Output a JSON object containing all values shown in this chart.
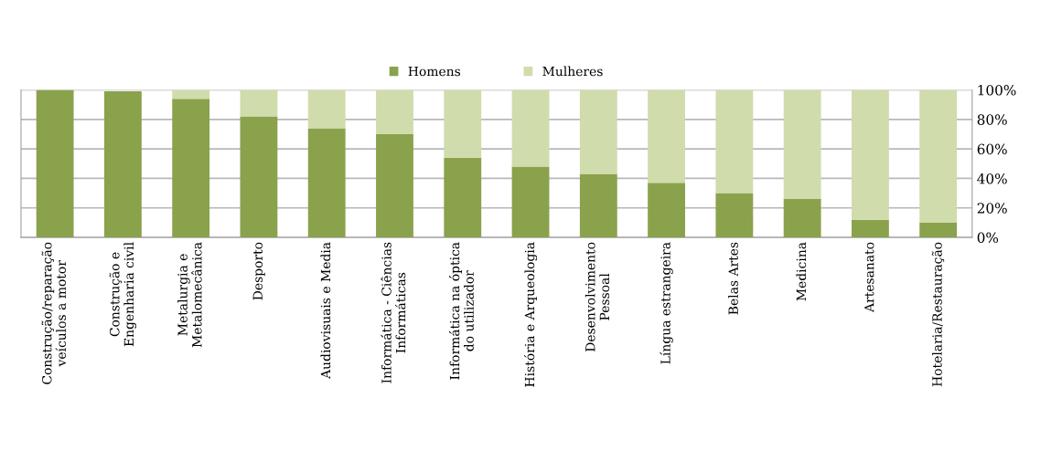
{
  "chart_data": {
    "type": "bar",
    "stacked": true,
    "categories": [
      "Construção/reparação\nveículos a motor",
      "Construção e\nEngenharia civil",
      "Metalurgia e\nMetalomecânica",
      "Desporto",
      "Audiovisuais e Media",
      "Informática - Ciências\nInformáticas",
      "Informática na óptica\ndo utilizador",
      "História e Arqueologia",
      "Desenvolvimento\nPessoal",
      "Língua estrangeira",
      "Belas Artes",
      "Medicina",
      "Artesanato",
      "Hotelaria/Restauração"
    ],
    "series": [
      {
        "name": "Homens",
        "color": "#8aa24c",
        "values": [
          100,
          99,
          94,
          82,
          74,
          70,
          54,
          48,
          43,
          37,
          30,
          26,
          12,
          10
        ]
      },
      {
        "name": "Mulheres",
        "color": "#d0dcab",
        "values": [
          0,
          null,
          6,
          18,
          26,
          30,
          46,
          52,
          57,
          63,
          70,
          74,
          88,
          90
        ]
      }
    ],
    "ylim": [
      0,
      100
    ],
    "yticks": [
      {
        "value": 0,
        "label": "0%"
      },
      {
        "value": 20,
        "label": "20%"
      },
      {
        "value": 40,
        "label": "40%"
      },
      {
        "value": 60,
        "label": "60%"
      },
      {
        "value": 80,
        "label": "80%"
      },
      {
        "value": 100,
        "label": "100%"
      }
    ],
    "grid": "y",
    "legend": "top"
  }
}
